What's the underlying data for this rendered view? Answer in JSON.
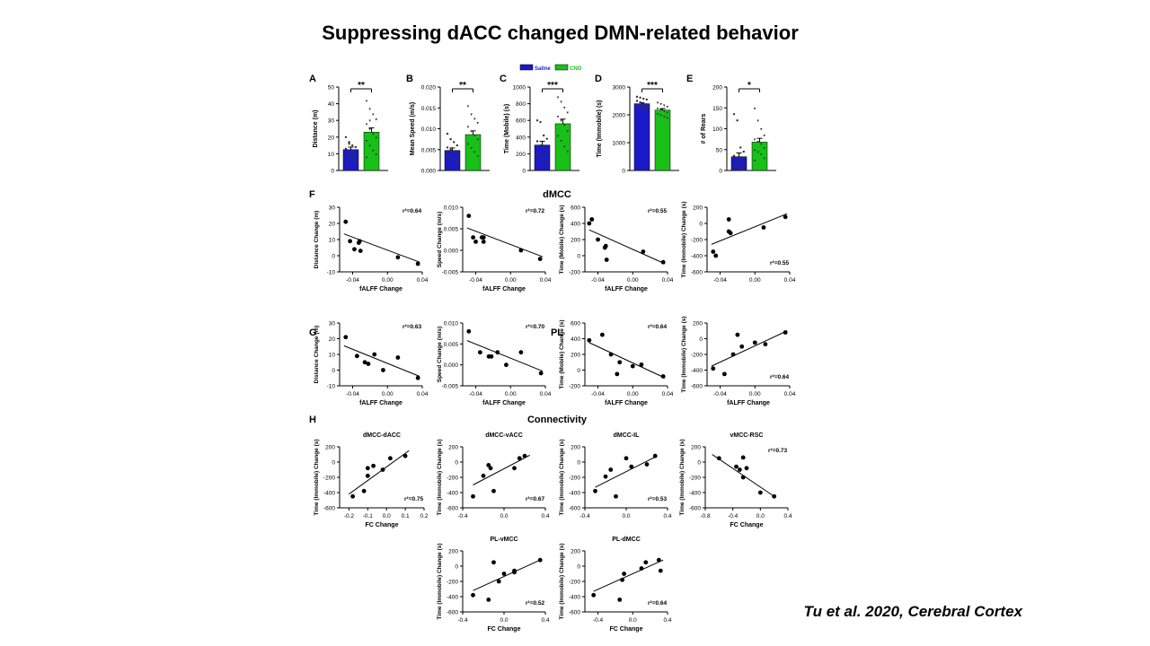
{
  "slide_title": "Suppressing dACC changed DMN-related behavior",
  "citation": "Tu et al. 2020, Cerebral  Cortex",
  "colors": {
    "saline": "#1a1ac8",
    "cno": "#18c018",
    "point": "#000000"
  },
  "section_labels": {
    "dmcc": "dMCC",
    "pl": "PL",
    "connectivity": "Connectivity"
  },
  "legend": {
    "saline": "Saline",
    "cno": "CNO"
  },
  "chart_data": [
    {
      "type": "bar",
      "panel": "A",
      "ylabel": "Distance (m)",
      "ylim": [
        0,
        50
      ],
      "yticks": [
        "0",
        "10",
        "20",
        "30",
        "40",
        "50"
      ],
      "tick_values": [
        0,
        10,
        20,
        30,
        40,
        50
      ],
      "categories": [
        "Saline",
        "CNO"
      ],
      "values": [
        12.5,
        23
      ],
      "errors": [
        1.5,
        2.5
      ],
      "sig": "**",
      "points": [
        [
          20,
          17,
          15,
          14,
          13,
          12,
          11,
          10,
          9,
          8,
          7,
          6,
          5,
          16
        ],
        [
          42,
          37,
          34,
          31,
          28,
          25,
          22,
          20,
          18,
          15,
          12,
          10,
          8,
          30
        ]
      ]
    },
    {
      "type": "bar",
      "panel": "B",
      "ylabel": "Mean Speed (m/s)",
      "ylim": [
        0,
        0.02
      ],
      "yticks": [
        "0.000",
        "0.005",
        "0.010",
        "0.015",
        "0.020"
      ],
      "tick_values": [
        0,
        0.005,
        0.01,
        0.015,
        0.02
      ],
      "categories": [
        "Saline",
        "CNO"
      ],
      "values": [
        0.0048,
        0.0086
      ],
      "errors": [
        0.0006,
        0.0009
      ],
      "sig": "**",
      "points": [
        [
          0.0088,
          0.0075,
          0.0068,
          0.006,
          0.0055,
          0.005,
          0.0045,
          0.004,
          0.0035,
          0.003,
          0.0025,
          0.002
        ],
        [
          0.0155,
          0.0135,
          0.0125,
          0.0115,
          0.0105,
          0.0095,
          0.0085,
          0.0075,
          0.0065,
          0.0055,
          0.0045,
          0.0035
        ]
      ]
    },
    {
      "type": "bar",
      "panel": "C",
      "ylabel": "Time (Mobile) (s)",
      "ylim": [
        0,
        1000
      ],
      "yticks": [
        "0",
        "200",
        "400",
        "600",
        "800",
        "1000"
      ],
      "tick_values": [
        0,
        200,
        400,
        600,
        800,
        1000
      ],
      "categories": [
        "Saline",
        "CNO"
      ],
      "values": [
        305,
        560
      ],
      "errors": [
        45,
        55
      ],
      "sig": "***",
      "points": [
        [
          600,
          580,
          420,
          380,
          350,
          300,
          260,
          220,
          190,
          150,
          110,
          90
        ],
        [
          880,
          830,
          760,
          700,
          650,
          600,
          550,
          480,
          420,
          360,
          290,
          230
        ]
      ]
    },
    {
      "type": "bar",
      "panel": "D",
      "ylabel": "Time (Immobile) (s)",
      "ylim": [
        0,
        3000
      ],
      "yticks": [
        "0",
        "1000",
        "2000",
        "3000"
      ],
      "tick_values": [
        0,
        1000,
        2000,
        3000
      ],
      "categories": [
        "Saline",
        "CNO"
      ],
      "values": [
        2400,
        2170
      ],
      "errors": [
        40,
        55
      ],
      "sig": "***",
      "points": [
        [
          2650,
          2620,
          2580,
          2550,
          2500,
          2450,
          2420,
          2380,
          2350,
          2300,
          2250,
          2200
        ],
        [
          2450,
          2400,
          2350,
          2300,
          2250,
          2200,
          2150,
          2100,
          2050,
          2000,
          1950,
          1900
        ]
      ]
    },
    {
      "type": "bar",
      "panel": "E",
      "ylabel": "# of Rears",
      "ylim": [
        0,
        200
      ],
      "yticks": [
        "0",
        "50",
        "100",
        "150",
        "200"
      ],
      "tick_values": [
        0,
        50,
        100,
        150,
        200
      ],
      "categories": [
        "Saline",
        "CNO"
      ],
      "values": [
        33,
        68
      ],
      "errors": [
        9,
        9
      ],
      "sig": "*",
      "points": [
        [
          135,
          120,
          55,
          45,
          35,
          25,
          20,
          15,
          10,
          8,
          5,
          2
        ],
        [
          150,
          120,
          100,
          85,
          75,
          70,
          65,
          55,
          50,
          45,
          40,
          30,
          25
        ]
      ]
    }
  ],
  "scatter_data": [
    {
      "panel": "F",
      "ylabel": "Distance Change (m)",
      "xlabel": "fALFF Change",
      "xlim": [
        -0.055,
        0.04
      ],
      "ylim": [
        -10,
        30
      ],
      "xticks": [
        "-0.04",
        "0.00",
        "0.04"
      ],
      "xtick_values": [
        -0.04,
        0,
        0.04
      ],
      "yticks": [
        "-10",
        "0",
        "10",
        "20",
        "30"
      ],
      "ytick_values": [
        -10,
        0,
        10,
        20,
        30
      ],
      "r2": "0.64",
      "r2_pos": "top",
      "x": [
        -0.048,
        -0.043,
        -0.038,
        -0.033,
        -0.032,
        -0.031,
        0.012,
        0.035
      ],
      "y": [
        21,
        9,
        4,
        8,
        9,
        3,
        -1,
        -5
      ],
      "fit": [
        [
          -0.05,
          13.5
        ],
        [
          0.037,
          -4
        ]
      ]
    },
    {
      "panel": "F",
      "ylabel": "Speed Change (m/s)",
      "xlabel": "fALFF Change",
      "xlim": [
        -0.055,
        0.04
      ],
      "ylim": [
        -0.005,
        0.01
      ],
      "xticks": [
        "-0.04",
        "0.00",
        "0.04"
      ],
      "xtick_values": [
        -0.04,
        0,
        0.04
      ],
      "yticks": [
        "-0.005",
        "0.000",
        "0.005",
        "0.010"
      ],
      "ytick_values": [
        -0.005,
        0,
        0.005,
        0.01
      ],
      "r2": "0.72",
      "r2_pos": "top",
      "x": [
        -0.048,
        -0.043,
        -0.04,
        -0.033,
        -0.031,
        -0.031,
        0.012,
        0.034
      ],
      "y": [
        0.008,
        0.003,
        0.002,
        0.003,
        0.003,
        0.002,
        0.0,
        -0.002
      ],
      "fit": [
        [
          -0.05,
          0.0052
        ],
        [
          0.037,
          -0.0015
        ]
      ]
    },
    {
      "panel": "F",
      "ylabel": "Time (Mobile) Change (s)",
      "xlabel": "fALFF Change",
      "xlim": [
        -0.055,
        0.04
      ],
      "ylim": [
        -200,
        600
      ],
      "xticks": [
        "-0.04",
        "0.00",
        "0.04"
      ],
      "xtick_values": [
        -0.04,
        0,
        0.04
      ],
      "yticks": [
        "-200",
        "0",
        "200",
        "400",
        "600"
      ],
      "ytick_values": [
        -200,
        0,
        200,
        400,
        600
      ],
      "r2": "0.55",
      "r2_pos": "top",
      "x": [
        -0.05,
        -0.047,
        -0.04,
        -0.032,
        -0.031,
        -0.03,
        0.012,
        0.035
      ],
      "y": [
        400,
        450,
        200,
        100,
        120,
        -50,
        50,
        -80
      ],
      "fit": [
        [
          -0.05,
          320
        ],
        [
          0.037,
          -100
        ]
      ]
    },
    {
      "panel": "F",
      "ylabel": "Time (Immobile) Change (s)",
      "xlabel": "",
      "xlim": [
        -0.055,
        0.04
      ],
      "ylim": [
        -600,
        200
      ],
      "xticks": [
        "-0.04",
        "0.00",
        "0.04"
      ],
      "xtick_values": [
        -0.04,
        0,
        0.04
      ],
      "yticks": [
        "-600",
        "-400",
        "-200",
        "0",
        "200"
      ],
      "ytick_values": [
        -600,
        -400,
        -200,
        0,
        200
      ],
      "r2": "0.55",
      "r2_pos": "bottom",
      "x": [
        -0.048,
        -0.045,
        -0.03,
        -0.03,
        -0.028,
        0.01,
        0.035
      ],
      "y": [
        -350,
        -400,
        50,
        -100,
        -120,
        -50,
        80
      ],
      "fit": [
        [
          -0.05,
          -260
        ],
        [
          0.037,
          120
        ]
      ]
    },
    {
      "panel": "G",
      "ylabel": "Distance Change (m)",
      "xlabel": "fALFF Change",
      "xlim": [
        -0.055,
        0.04
      ],
      "ylim": [
        -10,
        30
      ],
      "xticks": [
        "-0.04",
        "0.00",
        "0.04"
      ],
      "xtick_values": [
        -0.04,
        0,
        0.04
      ],
      "yticks": [
        "-10",
        "0",
        "10",
        "20",
        "30"
      ],
      "ytick_values": [
        -10,
        0,
        10,
        20,
        30
      ],
      "r2": "0.63",
      "r2_pos": "top",
      "x": [
        -0.048,
        -0.035,
        -0.026,
        -0.022,
        -0.015,
        -0.005,
        0.012,
        0.035
      ],
      "y": [
        21,
        9,
        5,
        4,
        10,
        0,
        8,
        -5
      ],
      "fit": [
        [
          -0.05,
          15.5
        ],
        [
          0.037,
          -4
        ]
      ]
    },
    {
      "panel": "G",
      "ylabel": "Speed Change (m/s)",
      "xlabel": "fALFF Change",
      "xlim": [
        -0.055,
        0.04
      ],
      "ylim": [
        -0.005,
        0.01
      ],
      "xticks": [
        "-0.04",
        "0.00",
        "0.04"
      ],
      "xtick_values": [
        -0.04,
        0,
        0.04
      ],
      "yticks": [
        "-0.005",
        "0.000",
        "0.005",
        "0.010"
      ],
      "ytick_values": [
        -0.005,
        0,
        0.005,
        0.01
      ],
      "r2": "0.70",
      "r2_pos": "top",
      "x": [
        -0.048,
        -0.035,
        -0.025,
        -0.022,
        -0.015,
        -0.005,
        0.012,
        0.035
      ],
      "y": [
        0.008,
        0.003,
        0.002,
        0.002,
        0.003,
        0.0,
        0.003,
        -0.002
      ],
      "fit": [
        [
          -0.05,
          0.0058
        ],
        [
          0.037,
          -0.0015
        ]
      ]
    },
    {
      "panel": "G",
      "ylabel": "Time (Mobile) Change (s)",
      "xlabel": "fALFF Change",
      "xlim": [
        -0.055,
        0.04
      ],
      "ylim": [
        -200,
        600
      ],
      "xticks": [
        "-0.04",
        "0.00",
        "0.04"
      ],
      "xtick_values": [
        -0.04,
        0,
        0.04
      ],
      "yticks": [
        "-200",
        "0",
        "200",
        "400",
        "600"
      ],
      "ytick_values": [
        -200,
        0,
        200,
        400,
        600
      ],
      "r2": "0.64",
      "r2_pos": "top",
      "x": [
        -0.05,
        -0.035,
        -0.025,
        -0.018,
        -0.015,
        0.0,
        0.01,
        0.035
      ],
      "y": [
        380,
        450,
        200,
        -50,
        100,
        50,
        70,
        -80
      ],
      "fit": [
        [
          -0.05,
          350
        ],
        [
          0.037,
          -100
        ]
      ]
    },
    {
      "panel": "G",
      "ylabel": "Time (Immobile) Change (s)",
      "xlabel": "fALFF Change",
      "xlim": [
        -0.055,
        0.04
      ],
      "ylim": [
        -600,
        200
      ],
      "xticks": [
        "-0.04",
        "0.00",
        "0.04"
      ],
      "xtick_values": [
        -0.04,
        0,
        0.04
      ],
      "yticks": [
        "-600",
        "-400",
        "-200",
        "0",
        "200"
      ],
      "ytick_values": [
        -600,
        -400,
        -200,
        0,
        200
      ],
      "r2": "0.64",
      "r2_pos": "bottom",
      "x": [
        -0.048,
        -0.035,
        -0.025,
        -0.02,
        -0.015,
        0.0,
        0.012,
        0.035
      ],
      "y": [
        -380,
        -450,
        -200,
        50,
        -100,
        -50,
        -70,
        80
      ],
      "fit": [
        [
          -0.05,
          -350
        ],
        [
          0.037,
          100
        ]
      ]
    },
    {
      "panel": "H",
      "title": "dMCC-dACC",
      "ylabel": "Time (Immobile) Change (s)",
      "xlabel": "FC Change",
      "xlim": [
        -0.25,
        0.2
      ],
      "ylim": [
        -600,
        200
      ],
      "xticks": [
        "-0.2",
        "-0.1",
        "0.0",
        "0.1",
        "0.2"
      ],
      "xtick_values": [
        -0.2,
        -0.1,
        0,
        0.1,
        0.2
      ],
      "yticks": [
        "-600",
        "-400",
        "-200",
        "0",
        "200"
      ],
      "ytick_values": [
        -600,
        -400,
        -200,
        0,
        200
      ],
      "r2": "0.75",
      "r2_pos": "bottom",
      "x": [
        -0.18,
        -0.12,
        -0.1,
        -0.1,
        -0.07,
        -0.02,
        0.02,
        0.1
      ],
      "y": [
        -450,
        -380,
        -180,
        -80,
        -50,
        -100,
        50,
        80
      ],
      "fit": [
        [
          -0.2,
          -420
        ],
        [
          0.12,
          150
        ]
      ]
    },
    {
      "panel": "H",
      "title": "dMCC-vACC",
      "ylabel": "Time (Immobile) Change (s)",
      "xlabel": "",
      "xlim": [
        -0.4,
        0.4
      ],
      "ylim": [
        -600,
        200
      ],
      "xticks": [
        "-0.4",
        "0.0",
        "0.4"
      ],
      "xtick_values": [
        -0.4,
        0,
        0.4
      ],
      "yticks": [
        "-600",
        "-400",
        "-200",
        "0",
        "200"
      ],
      "ytick_values": [
        -600,
        -400,
        -200,
        0,
        200
      ],
      "r2": "0.67",
      "r2_pos": "bottom",
      "x": [
        -0.3,
        -0.2,
        -0.15,
        -0.13,
        -0.1,
        0.1,
        0.15,
        0.2
      ],
      "y": [
        -450,
        -180,
        -40,
        -80,
        -380,
        -80,
        50,
        80
      ],
      "fit": [
        [
          -0.3,
          -300
        ],
        [
          0.25,
          90
        ]
      ]
    },
    {
      "panel": "H",
      "title": "dMCC-IL",
      "ylabel": "Time (Immobile) Change (s)",
      "xlabel": "",
      "xlim": [
        -0.4,
        0.4
      ],
      "ylim": [
        -600,
        200
      ],
      "xticks": [
        "-0.4",
        "0.0",
        "0.4"
      ],
      "xtick_values": [
        -0.4,
        0,
        0.4
      ],
      "yticks": [
        "-600",
        "-400",
        "-200",
        "0",
        "200"
      ],
      "ytick_values": [
        -600,
        -400,
        -200,
        0,
        200
      ],
      "r2": "0.53",
      "r2_pos": "bottom",
      "x": [
        -0.3,
        -0.2,
        -0.15,
        -0.1,
        0.0,
        0.05,
        0.2,
        0.28
      ],
      "y": [
        -380,
        -190,
        -100,
        -450,
        50,
        -60,
        -30,
        80
      ],
      "fit": [
        [
          -0.3,
          -330
        ],
        [
          0.3,
          80
        ]
      ]
    },
    {
      "panel": "H",
      "title": "vMCC-RSC",
      "ylabel": "Time (Immobile) Change (s)",
      "xlabel": "FC Change",
      "xlim": [
        -0.8,
        0.4
      ],
      "ylim": [
        -600,
        200
      ],
      "xticks": [
        "-0.8",
        "-0.4",
        "0.0",
        "0.4"
      ],
      "xtick_values": [
        -0.8,
        -0.4,
        0,
        0.4
      ],
      "yticks": [
        "-600",
        "-400",
        "-200",
        "0",
        "200"
      ],
      "ytick_values": [
        -600,
        -400,
        -200,
        0,
        200
      ],
      "r2": "0.73",
      "r2_pos": "top",
      "x": [
        -0.6,
        -0.35,
        -0.3,
        -0.25,
        -0.25,
        -0.2,
        0.0,
        0.2
      ],
      "y": [
        50,
        -60,
        -100,
        60,
        -200,
        -80,
        -400,
        -450
      ],
      "fit": [
        [
          -0.7,
          100
        ],
        [
          0.2,
          -450
        ]
      ]
    },
    {
      "panel": "H",
      "title": "PL-vMCC",
      "ylabel": "Time (Immobile) Change (s)",
      "xlabel": "FC Change",
      "xlim": [
        -0.4,
        0.4
      ],
      "ylim": [
        -600,
        200
      ],
      "xticks": [
        "-0.4",
        "0.0",
        "0.4"
      ],
      "xtick_values": [
        -0.4,
        0,
        0.4
      ],
      "yticks": [
        "-600",
        "-400",
        "-200",
        "0",
        "200"
      ],
      "ytick_values": [
        -600,
        -400,
        -200,
        0,
        200
      ],
      "r2": "0.52",
      "r2_pos": "bottom",
      "x": [
        -0.3,
        -0.15,
        -0.1,
        -0.05,
        0.0,
        0.1,
        0.1,
        0.35
      ],
      "y": [
        -380,
        -440,
        50,
        -200,
        -100,
        -60,
        -80,
        80
      ],
      "fit": [
        [
          -0.3,
          -320
        ],
        [
          0.35,
          80
        ]
      ]
    },
    {
      "panel": "H",
      "title": "PL-dMCC",
      "ylabel": "Time (Immobile) Change (s)",
      "xlabel": "FC Change",
      "xlim": [
        -0.55,
        0.4
      ],
      "ylim": [
        -600,
        200
      ],
      "xticks": [
        "-0.4",
        "0.0",
        "0.4"
      ],
      "xtick_values": [
        -0.4,
        0,
        0.4
      ],
      "yticks": [
        "-600",
        "-400",
        "-200",
        "0",
        "200"
      ],
      "ytick_values": [
        -600,
        -400,
        -200,
        0,
        200
      ],
      "r2": "0.64",
      "r2_pos": "bottom",
      "x": [
        -0.45,
        -0.15,
        -0.12,
        -0.1,
        0.1,
        0.15,
        0.3,
        0.32
      ],
      "y": [
        -380,
        -440,
        -180,
        -100,
        -30,
        50,
        80,
        -60
      ],
      "fit": [
        [
          -0.45,
          -330
        ],
        [
          0.35,
          80
        ]
      ]
    }
  ]
}
